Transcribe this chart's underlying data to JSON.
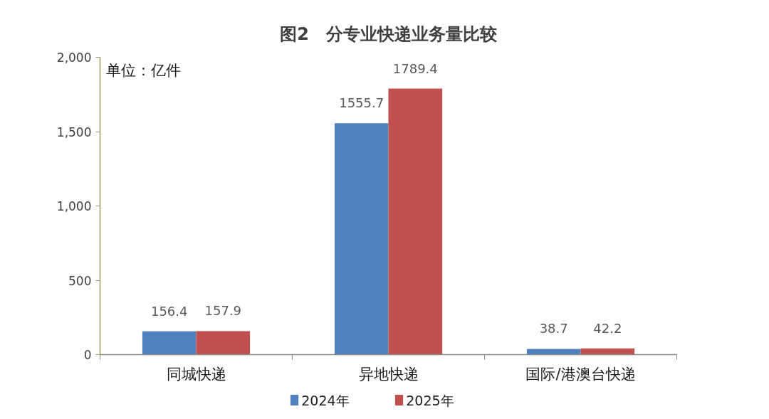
{
  "chart_data": {
    "type": "bar",
    "title": "图2　分专业快递业务量比较",
    "annotations": [
      "单位：亿件"
    ],
    "categories": [
      "同城快递",
      "异地快递",
      "国际/港澳台快递"
    ],
    "series": [
      {
        "name": "2024年",
        "color": "#4f81bd",
        "values": [
          156.4,
          1555.7,
          38.7
        ]
      },
      {
        "name": "2025年",
        "color": "#c0504d",
        "values": [
          157.9,
          1789.4,
          42.2
        ]
      }
    ],
    "ylim": [
      0,
      2000
    ],
    "yticks": [
      0,
      500,
      {
        "value": 1000,
        "label": "1,000"
      },
      {
        "value": 1500,
        "label": "1,500"
      },
      {
        "value": 2000,
        "label": "2,000"
      }
    ],
    "data_labels": true,
    "legend": "bottom"
  }
}
